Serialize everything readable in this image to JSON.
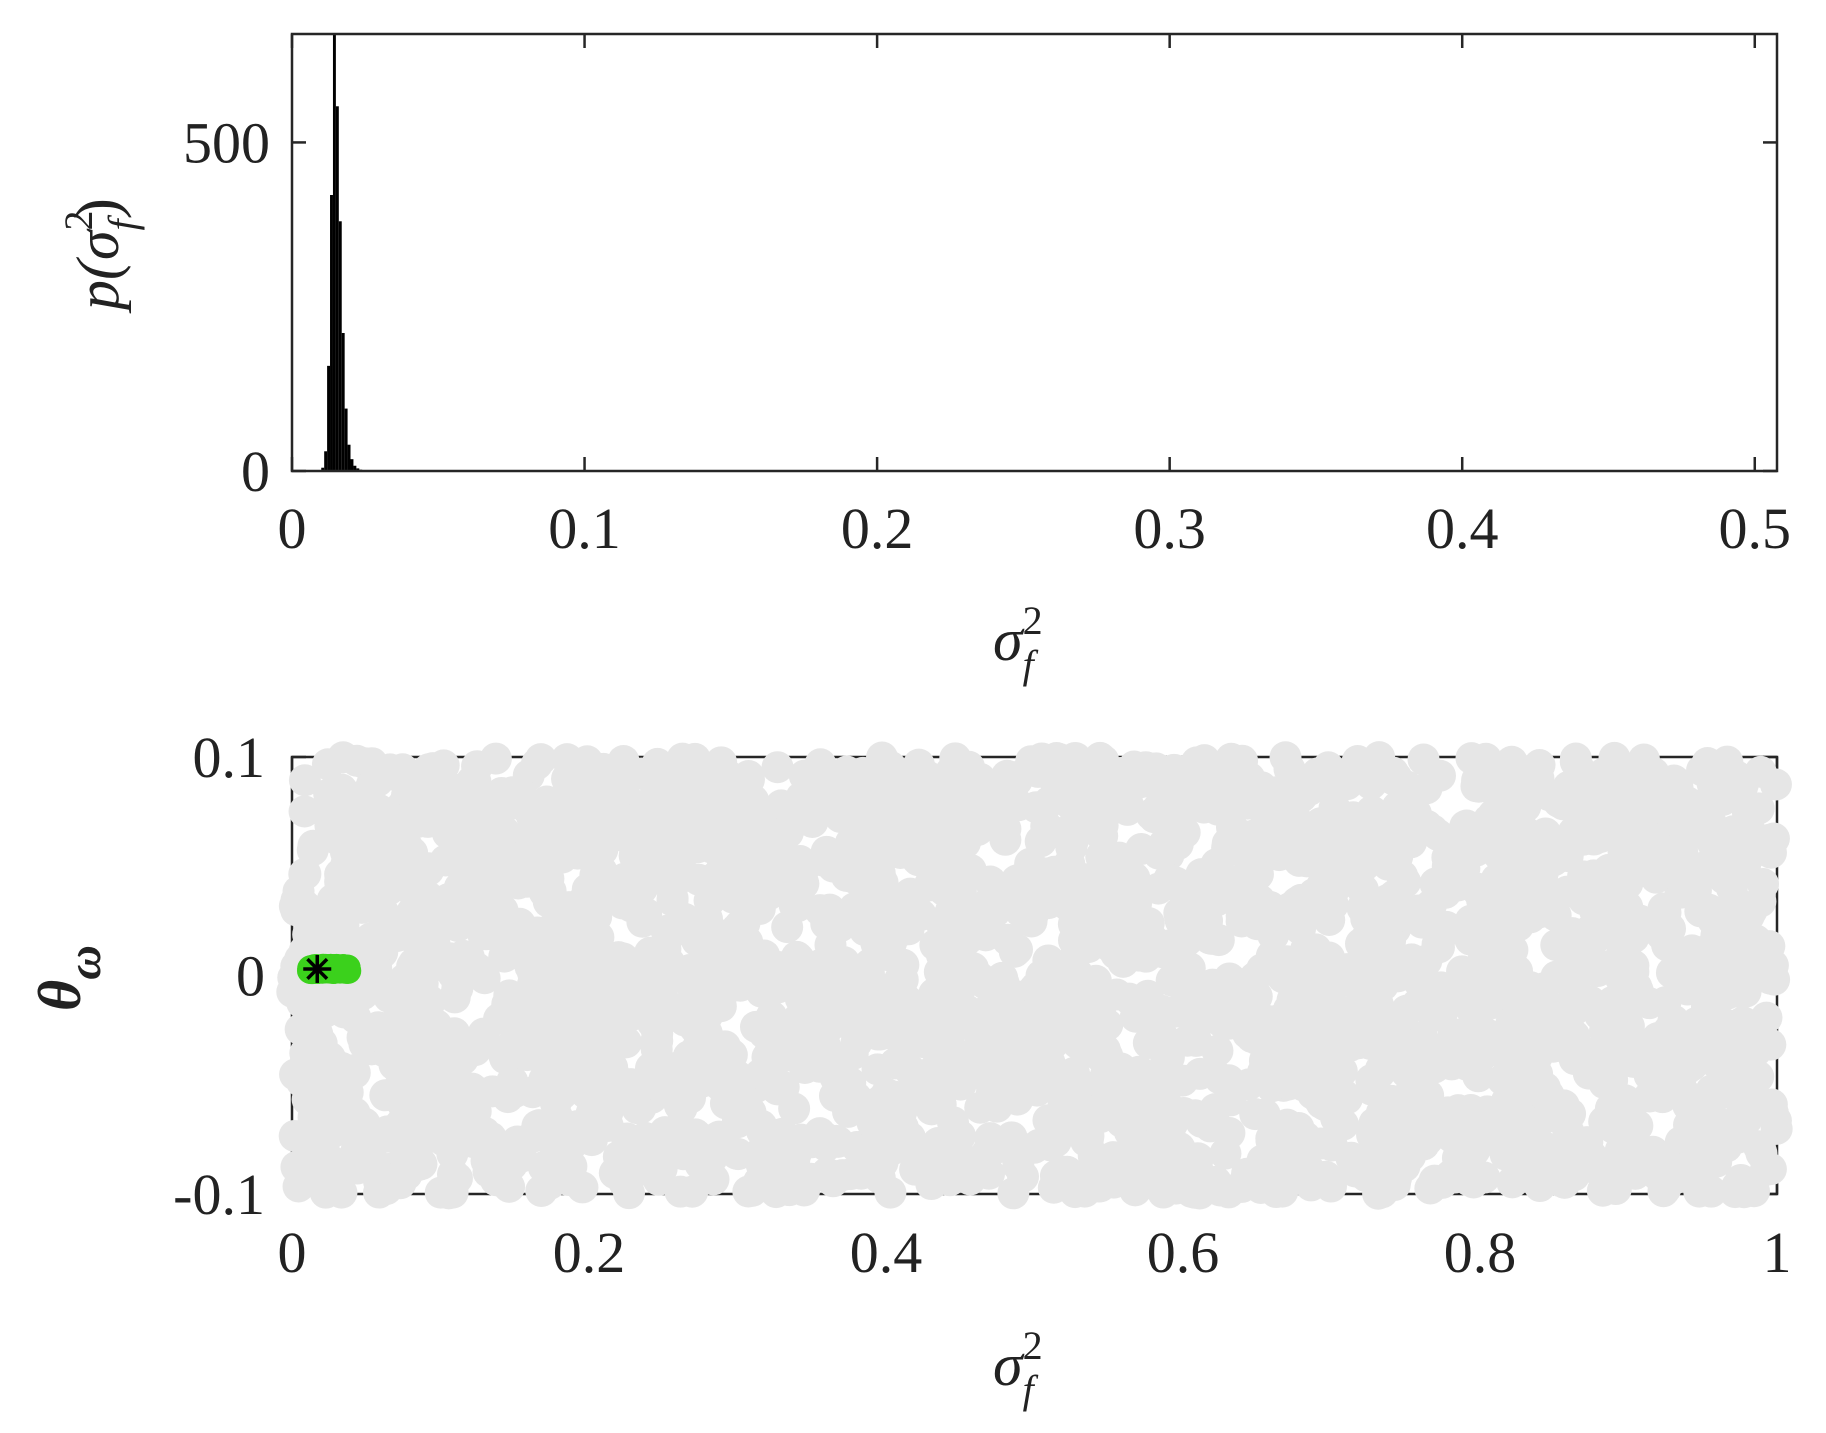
{
  "chart_data": [
    {
      "type": "bar",
      "subtype": "histogram",
      "xlabel_html": "σ²_f",
      "xlabel": {
        "base": "σ",
        "sup": "2",
        "sub": "f"
      },
      "ylabel": {
        "func": "p(",
        "base": "σ",
        "sup": "2",
        "sub": "f",
        "close": ")"
      },
      "xlim": [
        0,
        0.5076
      ],
      "ylim": [
        0,
        665
      ],
      "xticks": [
        0,
        0.1,
        0.2,
        0.3,
        0.4,
        0.5
      ],
      "xtick_labels": [
        "0",
        "0.1",
        "0.2",
        "0.3",
        "0.4",
        "0.5"
      ],
      "yticks": [
        0,
        500
      ],
      "ytick_labels": [
        "0",
        "500"
      ],
      "bin_edges": [
        0.01,
        0.011,
        0.012,
        0.013,
        0.014,
        0.015,
        0.016,
        0.017,
        0.018,
        0.019,
        0.02,
        0.021,
        0.022,
        0.023,
        0.024,
        0.025,
        0.026,
        0.027,
        0.028,
        0.029,
        0.03
      ],
      "values": [
        5,
        30,
        160,
        420,
        665,
        555,
        380,
        210,
        95,
        40,
        18,
        8,
        4,
        2,
        1,
        1,
        0,
        0,
        0,
        0
      ],
      "bar_color": "#000000",
      "grid": false
    },
    {
      "type": "scatter",
      "xlabel": {
        "base": "σ",
        "sup": "2",
        "sub": "f"
      },
      "ylabel": {
        "base": "θ",
        "sub": "ω"
      },
      "xlim": [
        0,
        1
      ],
      "ylim": [
        -0.1,
        0.1
      ],
      "xticks": [
        0,
        0.2,
        0.4,
        0.6,
        0.8,
        1
      ],
      "xtick_labels": [
        "0",
        "0.2",
        "0.4",
        "0.6",
        "0.8",
        "1"
      ],
      "yticks": [
        -0.1,
        0,
        0.1
      ],
      "ytick_labels": [
        "-0.1",
        "0",
        "0.1"
      ],
      "series": [
        {
          "role": "prior samples",
          "color": "#e6e6e6",
          "x_range": [
            0,
            1
          ],
          "y_range": [
            -0.1,
            0.1
          ],
          "count": 2600
        },
        {
          "role": "posterior samples",
          "color": "#3bd11c",
          "x_range": [
            0.012,
            0.038
          ],
          "y_range": [
            0.002,
            0.004
          ],
          "count": 120
        },
        {
          "role": "true value",
          "marker": "*",
          "color": "#000000",
          "x": 0.017,
          "y": 0.003
        }
      ],
      "grid": false
    }
  ]
}
